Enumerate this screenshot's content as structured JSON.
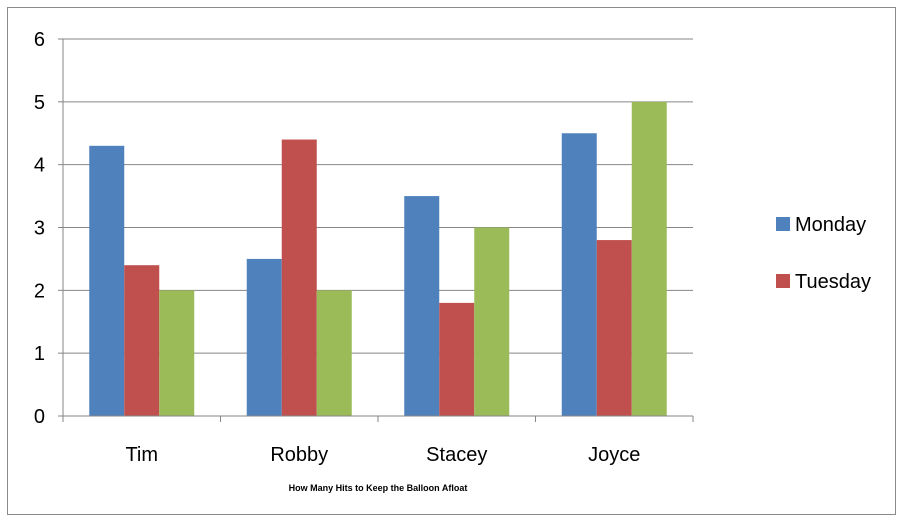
{
  "chart_data": {
    "type": "bar",
    "title": "",
    "xlabel": "How Many Hits to Keep the Balloon Afloat",
    "ylabel": "",
    "categories": [
      "Tim",
      "Robby",
      "Stacey",
      "Joyce"
    ],
    "ylim": [
      0,
      6
    ],
    "yticks": [
      "0",
      "1",
      "2",
      "3",
      "4",
      "5",
      "6"
    ],
    "grid": true,
    "legend_position": "right",
    "series": [
      {
        "name": "Monday",
        "color": "#4F81BD",
        "values": [
          4.3,
          2.5,
          3.5,
          4.5
        ]
      },
      {
        "name": "Tuesday",
        "color": "#C0504D",
        "values": [
          2.4,
          4.4,
          1.8,
          2.8
        ]
      },
      {
        "color": "#9BBB59",
        "values": [
          2.0,
          2.0,
          3.0,
          5.0
        ]
      }
    ]
  }
}
